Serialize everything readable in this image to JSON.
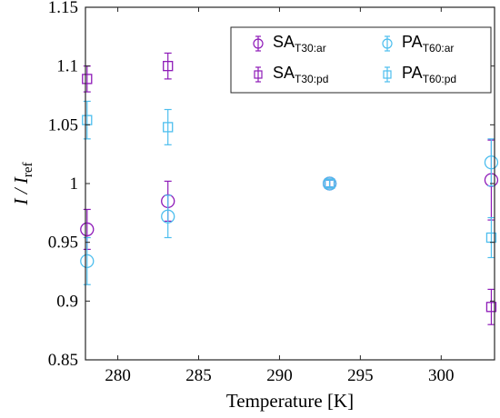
{
  "chart_data": {
    "type": "scatter",
    "xlabel": "Temperature [K]",
    "ylabel": {
      "main": "I / I",
      "sub": "ref"
    },
    "xlim": [
      278,
      303.3
    ],
    "ylim": [
      0.85,
      1.15
    ],
    "xticks": [
      280,
      285,
      290,
      295,
      300
    ],
    "yticks": [
      0.85,
      0.9,
      0.95,
      1,
      1.05,
      1.1,
      1.15
    ],
    "ytick_labels": [
      "0.85",
      "0.9",
      "0.95",
      "1",
      "1.05",
      "1.1",
      "1.15"
    ],
    "grid": false,
    "legend_position": "top-right",
    "colors": {
      "purple": "#8E1AB8",
      "cyan": "#4DBEEE"
    },
    "series": [
      {
        "name": "SA",
        "sub": "T30:ar",
        "marker": "circle",
        "color": "#8E1AB8",
        "x": [
          278.1,
          283.1,
          293.1,
          303.1
        ],
        "y": [
          0.961,
          0.985,
          1.0,
          1.003
        ],
        "err": [
          0.017,
          0.017,
          0.003,
          0.034
        ]
      },
      {
        "name": "SA",
        "sub": "T30:pd",
        "marker": "square",
        "color": "#8E1AB8",
        "x": [
          278.1,
          283.1,
          293.1,
          303.1
        ],
        "y": [
          1.089,
          1.1,
          1.0,
          0.895
        ],
        "err": [
          0.011,
          0.011,
          0.003,
          0.015
        ]
      },
      {
        "name": "PA",
        "sub": "T60:ar",
        "marker": "circle",
        "color": "#4DBEEE",
        "x": [
          278.1,
          283.1,
          293.1,
          303.1
        ],
        "y": [
          0.934,
          0.972,
          1.0,
          1.018
        ],
        "err": [
          0.02,
          0.018,
          0.003,
          0.02
        ]
      },
      {
        "name": "PA",
        "sub": "T60:pd",
        "marker": "square",
        "color": "#4DBEEE",
        "x": [
          278.1,
          283.1,
          293.1,
          303.1
        ],
        "y": [
          1.054,
          1.048,
          1.0,
          0.954
        ],
        "err": [
          0.016,
          0.015,
          0.003,
          0.017
        ]
      }
    ]
  }
}
